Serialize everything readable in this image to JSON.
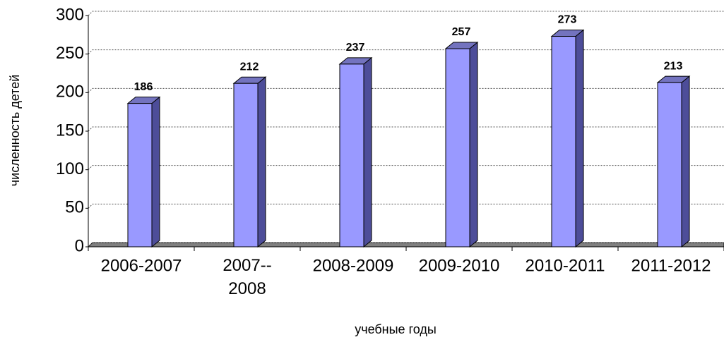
{
  "chart_data": {
    "type": "bar3d",
    "y_axis_label": "численность детей",
    "x_axis_label": "учебные годы",
    "categories": [
      "2006-2007",
      "2007--2008",
      "2008-2009",
      "2009-2010",
      "2010-2011",
      "2011-2012"
    ],
    "values": [
      186,
      212,
      237,
      257,
      273,
      213
    ],
    "color": "#9999ff",
    "ylim": [
      0,
      300
    ],
    "yticks": [
      0,
      50,
      100,
      150,
      200,
      250,
      300
    ],
    "grid": true
  }
}
